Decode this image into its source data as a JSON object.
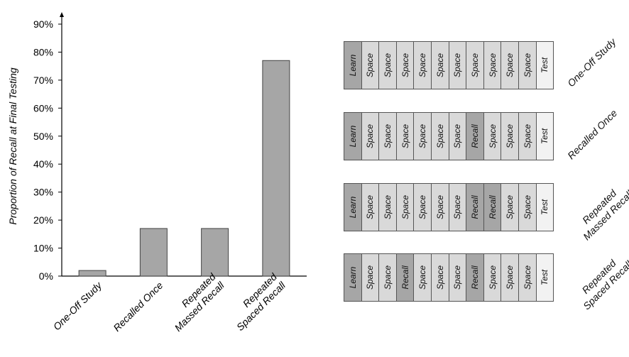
{
  "chart_data": {
    "type": "bar",
    "ylabel": "Proportion of Recall at Final Testing",
    "xlabel": "",
    "ylim": [
      0,
      90
    ],
    "ytick_values": [
      0,
      10,
      20,
      30,
      40,
      50,
      60,
      70,
      80,
      90
    ],
    "ytick_labels": [
      "0%",
      "10%",
      "20%",
      "30%",
      "40%",
      "50%",
      "60%",
      "70%",
      "80%",
      "90%"
    ],
    "categories": [
      [
        "One-Off Study"
      ],
      [
        "Recalled Once"
      ],
      [
        "Repeated",
        "Massed Recall"
      ],
      [
        "Repeated",
        "Spaced Recall"
      ]
    ],
    "values": [
      2,
      17,
      17,
      77
    ],
    "grid": false,
    "bar_color": "#a6a6a6"
  },
  "schedules": [
    {
      "label": [
        "One-Off Study"
      ],
      "cells": [
        "Learn",
        "Space",
        "Space",
        "Space",
        "Space",
        "Space",
        "Space",
        "Space",
        "Space",
        "Space",
        "Space",
        "Test"
      ]
    },
    {
      "label": [
        "Recalled Once"
      ],
      "cells": [
        "Learn",
        "Space",
        "Space",
        "Space",
        "Space",
        "Space",
        "Space",
        "Recall",
        "Space",
        "Space",
        "Space",
        "Test"
      ]
    },
    {
      "label": [
        "Repeated",
        "Massed Recall"
      ],
      "cells": [
        "Learn",
        "Space",
        "Space",
        "Space",
        "Space",
        "Space",
        "Space",
        "Recall",
        "Recall",
        "Space",
        "Space",
        "Test"
      ]
    },
    {
      "label": [
        "Repeated",
        "Spaced Recall"
      ],
      "cells": [
        "Learn",
        "Space",
        "Space",
        "Recall",
        "Space",
        "Space",
        "Space",
        "Recall",
        "Space",
        "Space",
        "Space",
        "Test"
      ]
    }
  ],
  "colors": {
    "learn": "#a6a6a6",
    "recall": "#a6a6a6",
    "space": "#d9d9d9",
    "test": "#f2f2f2"
  }
}
